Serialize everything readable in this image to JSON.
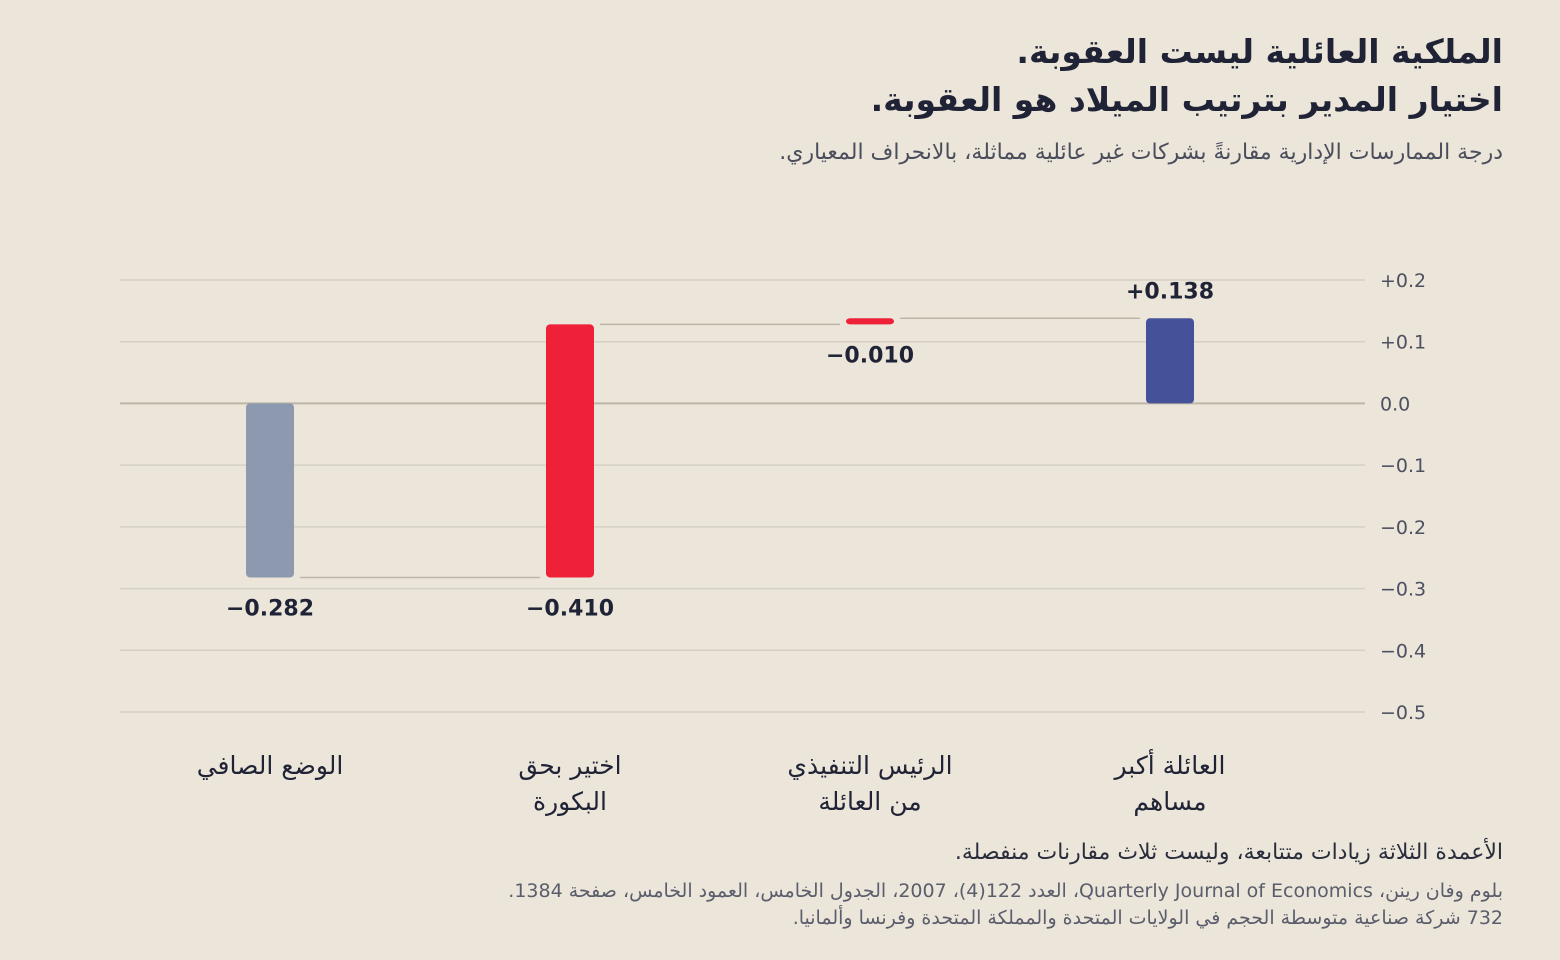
{
  "chart_data": {
    "type": "bar",
    "subtype": "waterfall",
    "title_lines": [
      "الملكية العائلية ليست العقوبة.",
      "اختيار المدير بترتيب الميلاد هو العقوبة."
    ],
    "subtitle": "درجة الممارسات الإدارية مقارنةً بشركات غير عائلية مماثلة، بالانحراف المعياري.",
    "categories": [
      [
        "العائلة أكبر",
        "مساهم"
      ],
      [
        "الرئيس التنفيذي",
        "من العائلة"
      ],
      [
        "اختير بحق",
        "البكورة"
      ],
      [
        "الوضع الصافي"
      ]
    ],
    "bars": [
      {
        "start": 0,
        "end": 0.138,
        "label": "+0.138",
        "color": "#45529a"
      },
      {
        "start": 0.138,
        "end": 0.128,
        "label": "−0.010",
        "color": "#ee2139"
      },
      {
        "start": 0.128,
        "end": -0.282,
        "label": "−0.410",
        "color": "#ee2139"
      },
      {
        "start": 0,
        "end": -0.282,
        "label": "−0.282",
        "color": "#8c99ae"
      }
    ],
    "yticks": [
      {
        "value": 0.2,
        "label": "+0.2"
      },
      {
        "value": 0.1,
        "label": "+0.1"
      },
      {
        "value": 0.0,
        "label": "0.0"
      },
      {
        "value": -0.1,
        "label": "−0.1"
      },
      {
        "value": -0.2,
        "label": "−0.2"
      },
      {
        "value": -0.3,
        "label": "−0.3"
      },
      {
        "value": -0.4,
        "label": "−0.4"
      },
      {
        "value": -0.5,
        "label": "−0.5"
      }
    ],
    "ylim": [
      -0.5,
      0.2
    ],
    "grid": true,
    "note": "الأعمدة الثلاثة زيادات متتابعة، وليست ثلاث مقارنات منفصلة.",
    "source_lines": [
      "بلوم وفان رينن، Quarterly Journal of Economics، العدد 122(4)، 2007، الجدول الخامس، العمود الخامس، صفحة 1384.",
      "732 شركة صناعية متوسطة الحجم في الولايات المتحدة والمملكة المتحدة وفرنسا وألمانيا."
    ]
  }
}
